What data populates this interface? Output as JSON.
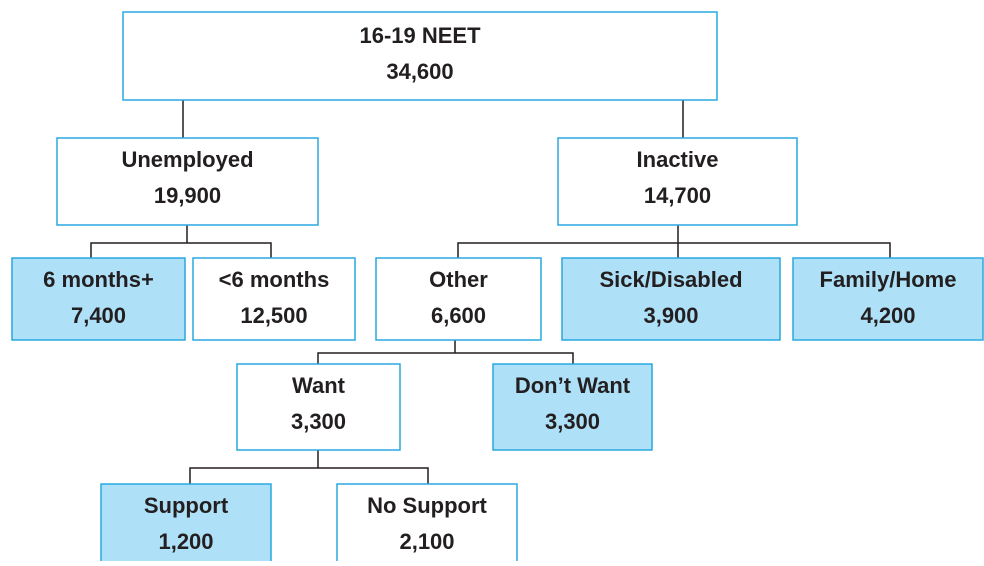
{
  "nodes": [
    {
      "label": "16-19 NEET",
      "value": "34,600"
    },
    {
      "label": "Unemployed",
      "value": "19,900"
    },
    {
      "label": "Inactive",
      "value": "14,700"
    },
    {
      "label": "6 months+",
      "value": "7,400"
    },
    {
      "label": "<6 months",
      "value": "12,500"
    },
    {
      "label": "Other",
      "value": "6,600"
    },
    {
      "label": "Sick/Disabled",
      "value": "3,900"
    },
    {
      "label": "Family/Home",
      "value": "4,200"
    },
    {
      "label": "Want",
      "value": "3,300"
    },
    {
      "label": "Don’t Want",
      "value": "3,300"
    },
    {
      "label": "Support",
      "value": "1,200"
    },
    {
      "label": "No Support",
      "value": "2,100"
    }
  ]
}
